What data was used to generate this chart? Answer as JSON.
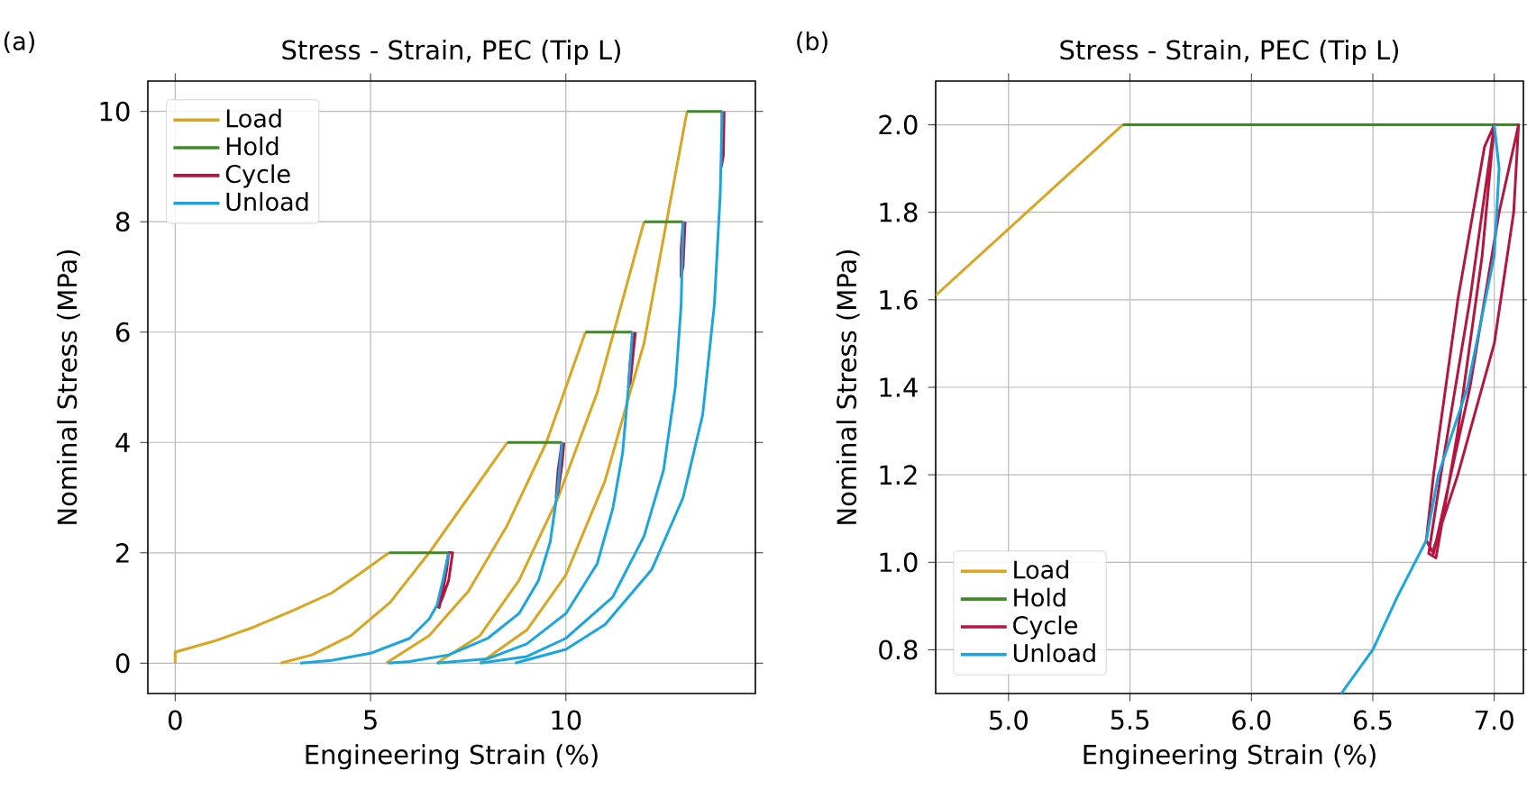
{
  "chart_data": [
    {
      "type": "line",
      "title": "Stress - Strain, PEC (Tip L)",
      "xlabel": "Engineering Strain (%)",
      "ylabel": "Nominal Stress (MPa)",
      "annotations": [
        "(a)"
      ],
      "xlim": [
        -0.7,
        14.85
      ],
      "ylim": [
        -0.55,
        10.55
      ],
      "xticks": [
        0,
        5,
        10
      ],
      "yticks": [
        0,
        2,
        4,
        6,
        8,
        10
      ],
      "grid": true,
      "legend": "top left",
      "series": [
        {
          "name": "Load",
          "color": "#daa520",
          "x": [
            0,
            0,
            1,
            2,
            3,
            4,
            4.7,
            5.47,
            null,
            2.7,
            3.5,
            4.5,
            5.5,
            6.5,
            7.5,
            8.5,
            null,
            5.4,
            6.5,
            7.5,
            8.5,
            9.5,
            10.5,
            null,
            6.7,
            7.8,
            8.8,
            9.8,
            10.8,
            12,
            null,
            7.8,
            9,
            10,
            11,
            12,
            13.1
          ],
          "values": [
            0,
            0.2,
            0.4,
            0.65,
            0.95,
            1.27,
            1.61,
            2.0,
            null,
            0,
            0.15,
            0.5,
            1.1,
            2.0,
            3.0,
            4.0,
            null,
            0,
            0.5,
            1.3,
            2.5,
            4.0,
            6.0,
            null,
            0,
            0.5,
            1.5,
            3.0,
            4.9,
            8.0,
            null,
            0,
            0.6,
            1.6,
            3.3,
            5.8,
            10.0
          ]
        },
        {
          "name": "Hold",
          "color": "#3f8a26",
          "x": [
            5.47,
            7.1,
            null,
            8.5,
            9.9,
            null,
            10.5,
            11.7,
            null,
            12,
            13.0,
            null,
            13.1,
            14.0
          ],
          "values": [
            2,
            2,
            null,
            4,
            4,
            null,
            6,
            6,
            null,
            8,
            8,
            null,
            10,
            10
          ]
        },
        {
          "name": "Cycle",
          "color": "#b5163f",
          "x": [
            7.0,
            6.9,
            6.78,
            6.73,
            6.76,
            6.85,
            6.95,
            7.0,
            7.1,
            7.0,
            6.85,
            6.75,
            null,
            9.9,
            9.8,
            9.75,
            9.8,
            9.9,
            9.95,
            null,
            11.75,
            11.65,
            11.6,
            11.65,
            11.72,
            11.78,
            null,
            13.0,
            12.95,
            12.95,
            13.0,
            13.05,
            null,
            14.0,
            14.0,
            13.98,
            14.03,
            14.05
          ],
          "values": [
            2.0,
            1.6,
            1.2,
            1.02,
            1.01,
            1.3,
            1.7,
            2.0,
            2.0,
            1.5,
            1.2,
            1.03,
            null,
            4.0,
            3.5,
            3.0,
            3.1,
            3.6,
            4.0,
            null,
            6.0,
            5.5,
            5.0,
            5.1,
            5.6,
            6.0,
            null,
            8.0,
            7.5,
            7.0,
            7.2,
            8.0,
            null,
            10.0,
            9.5,
            9.0,
            9.2,
            10.0
          ]
        },
        {
          "name": "Unload",
          "color": "#19a6e0",
          "x": [
            7.0,
            6.85,
            6.7,
            6.5,
            6.0,
            5.0,
            4.0,
            3.2,
            null,
            9.9,
            9.8,
            9.6,
            9.3,
            8.8,
            8,
            7,
            6,
            5.45,
            null,
            11.7,
            11.6,
            11.45,
            11.2,
            10.8,
            10,
            9,
            8,
            6.7,
            null,
            13.0,
            12.95,
            12.8,
            12.5,
            12,
            11.2,
            10,
            9,
            7.8,
            null,
            14.0,
            13.95,
            13.8,
            13.5,
            13,
            12.2,
            11,
            10,
            8.7
          ],
          "values": [
            2.0,
            1.5,
            1.05,
            0.8,
            0.45,
            0.18,
            0.05,
            0,
            null,
            4,
            3.2,
            2.2,
            1.5,
            0.9,
            0.45,
            0.15,
            0.03,
            0,
            null,
            6,
            5,
            3.8,
            2.8,
            1.8,
            0.9,
            0.35,
            0.08,
            0,
            null,
            8,
            6.5,
            5,
            3.5,
            2.3,
            1.2,
            0.45,
            0.12,
            0,
            null,
            10,
            8.5,
            6.5,
            4.5,
            3,
            1.7,
            0.7,
            0.25,
            0
          ]
        }
      ]
    },
    {
      "type": "line",
      "title": "Stress - Strain, PEC (Tip L)",
      "xlabel": "Engineering Strain (%)",
      "ylabel": "Nominal Stress (MPa)",
      "annotations": [
        "(b)"
      ],
      "xlim": [
        4.7,
        7.12
      ],
      "ylim": [
        0.7,
        2.1
      ],
      "xticks": [
        {
          "value": 5,
          "label": "5.0"
        },
        5.5,
        {
          "value": 6,
          "label": "6.0"
        },
        6.5,
        {
          "value": 7,
          "label": "7.0"
        }
      ],
      "yticks": [
        0.8,
        {
          "value": 1,
          "label": "1.0"
        },
        1.2,
        1.4,
        1.6,
        1.8,
        {
          "value": 2,
          "label": "2.0"
        }
      ],
      "grid": true,
      "legend": "bottom left",
      "series": [
        {
          "name": "Load",
          "color": "#daa520",
          "x": [
            4.7,
            5.47
          ],
          "values": [
            1.61,
            2.0
          ]
        },
        {
          "name": "Hold",
          "color": "#3f8a26",
          "x": [
            5.47,
            7.1
          ],
          "values": [
            2.0,
            2.0
          ]
        },
        {
          "name": "Cycle",
          "color": "#b5163f",
          "x": [
            7.0,
            6.9,
            6.78,
            6.73,
            6.76,
            6.85,
            6.95,
            7.0,
            6.96,
            6.85,
            6.75,
            6.72,
            6.75,
            6.9,
            7.02,
            7.1,
            7.08,
            7.0,
            6.85,
            6.75
          ],
          "values": [
            2.0,
            1.6,
            1.2,
            1.02,
            1.01,
            1.3,
            1.7,
            2.0,
            1.95,
            1.6,
            1.2,
            1.05,
            1.02,
            1.4,
            1.8,
            2.0,
            1.8,
            1.5,
            1.2,
            1.03
          ]
        },
        {
          "name": "Unload",
          "color": "#19a6e0",
          "x": [
            7.0,
            7.02,
            7.0,
            6.89,
            6.77,
            6.72,
            6.6,
            6.5,
            6.37
          ],
          "values": [
            2.0,
            1.9,
            1.7,
            1.4,
            1.2,
            1.05,
            0.92,
            0.8,
            0.7
          ]
        }
      ]
    }
  ]
}
